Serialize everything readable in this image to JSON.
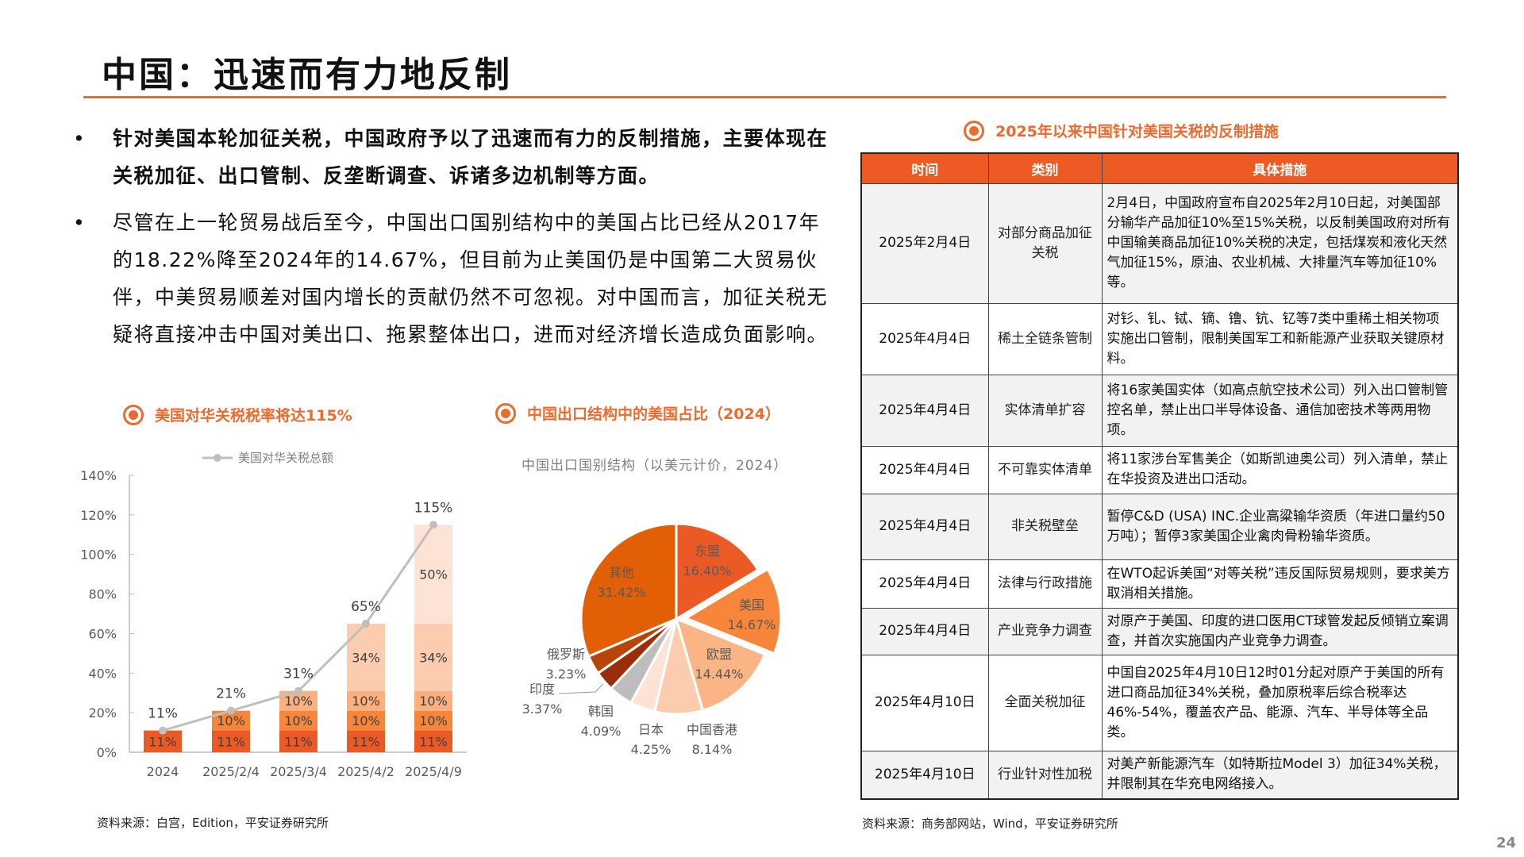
{
  "title": "中国：迅速而有力地反制",
  "bullets": [
    "针对美国本轮加征关税，中国政府予以了迅速而有力的反制措施，主要体现在关税加征、出口管制、反垄断调查、诉诸多边机制等方面。",
    "尽管在上一轮贸易战后至今，中国出口国别结构中的美国占比已经从2017年的18.22%降至2024年的14.67%，但目前为止美国仍是中国第二大贸易伙伴，中美贸易顺差对国内增长的贡献仍然不可忽视。对中国而言，加征关税无疑将直接冲击中国对美出口、拖累整体出口，进而对经济增长造成负面影响。"
  ],
  "sections": {
    "bar": "美国对华关税税率将达115%",
    "pie": "中国出口结构中的美国占比（2024）",
    "table": "2025年以来中国针对美国关税的反制措施"
  },
  "sources": {
    "left": "资料来源：白宫，Edition，平安证券研究所",
    "right": "资料来源：商务部网站，Wind，平安证券研究所"
  },
  "page_number": "24",
  "table": {
    "headers": [
      "时间",
      "类别",
      "具体措施"
    ],
    "rows": [
      [
        "2025年2月4日",
        "对部分商品加征关税",
        "2月4日，中国政府宣布自2025年2月10日起，对美国部分输华产品加征10%至15%关税，以反制美国政府对所有中国输美商品加征10%关税的决定，包括煤炭和液化天然气加征15%，原油、农业机械、大排量汽车等加征10%等。"
      ],
      [
        "2025年4月4日",
        "稀土全链条管制",
        "对钐、钆、铽、镝、镥、钪、钇等7类中重稀土相关物项实施出口管制，限制美国军工和新能源产业获取关键原材料。"
      ],
      [
        "2025年4月4日",
        "实体清单扩容",
        "将16家美国实体（如高点航空技术公司）列入出口管制管控名单，禁止出口半导体设备、通信加密技术等两用物项。"
      ],
      [
        "2025年4月4日",
        "不可靠实体清单",
        "将11家涉台军售美企（如斯凯迪奥公司）列入清单，禁止在华投资及进出口活动。"
      ],
      [
        "2025年4月4日",
        "非关税壁垒",
        "暂停C&D (USA) INC.企业高粱输华资质（年进口量约50万吨）；暂停3家美国企业禽肉骨粉输华资质。"
      ],
      [
        "2025年4月4日",
        "法律与行政措施",
        "在WTO起诉美国“对等关税”违反国际贸易规则，要求美方取消相关措施。"
      ],
      [
        "2025年4月4日",
        "产业竞争力调查",
        "对原产于美国、印度的进口医用CT球管发起反倾销立案调查，并首次实施国内产业竞争力调查。"
      ],
      [
        "2025年4月10日",
        "全面关税加征",
        "中国自2025年4月10日12时01分起对原产于美国的所有进口商品加征34%关税，叠加原税率后综合税率达46%-54%，覆盖农产品、能源、汽车、半导体等全品类。"
      ],
      [
        "2025年4月10日",
        "行业针对性加税",
        "对美产新能源汽车（如特斯拉Model 3）加征34%关税，并限制其在华充电网络接入。"
      ]
    ]
  },
  "chart_data": [
    {
      "type": "bar",
      "stacked": true,
      "categories": [
        "2024",
        "2025/2/4",
        "2025/3/4",
        "2025/4/2",
        "2025/4/9"
      ],
      "stack_values": [
        [
          11
        ],
        [
          11,
          10
        ],
        [
          11,
          10,
          10
        ],
        [
          11,
          10,
          10,
          34
        ],
        [
          11,
          10,
          10,
          34,
          50
        ]
      ],
      "stack_colors": [
        "#EB5A24",
        "#F7863A",
        "#FBB07E",
        "#FBCDAE",
        "#FDE3D5"
      ],
      "line": {
        "name": "美国对华关税总额",
        "values": [
          11,
          21,
          31,
          65,
          115
        ],
        "color": "#BFBFBF"
      },
      "ylim": [
        0,
        140
      ],
      "yticks": [
        "0%",
        "20%",
        "40%",
        "60%",
        "80%",
        "100%",
        "120%",
        "140%"
      ],
      "legend": "top"
    },
    {
      "type": "pie",
      "title": "中国出口国别结构（以美元计价，2024）",
      "slices": [
        {
          "label": "东盟",
          "value": 16.4,
          "text": "16.40%",
          "color": "#EB5A24"
        },
        {
          "label": "美国",
          "value": 14.67,
          "text": "14.67%",
          "color": "#F7863A",
          "exploded": true
        },
        {
          "label": "欧盟",
          "value": 14.44,
          "text": "14.44%",
          "color": "#FBB585"
        },
        {
          "label": "中国香港",
          "value": 8.14,
          "text": "8.14%",
          "color": "#FBCDAE"
        },
        {
          "label": "日本",
          "value": 4.25,
          "text": "4.25%",
          "color": "#FDE3D5"
        },
        {
          "label": "韩国",
          "value": 4.09,
          "text": "4.09%",
          "color": "#BDBDBD"
        },
        {
          "label": "印度",
          "value": 3.37,
          "text": "3.37%",
          "color": "#9A2E0B"
        },
        {
          "label": "俄罗斯",
          "value": 3.23,
          "text": "3.23%",
          "color": "#B84508"
        },
        {
          "label": "其他",
          "value": 31.42,
          "text": "31.42%",
          "color": "#E35F06"
        }
      ]
    }
  ]
}
